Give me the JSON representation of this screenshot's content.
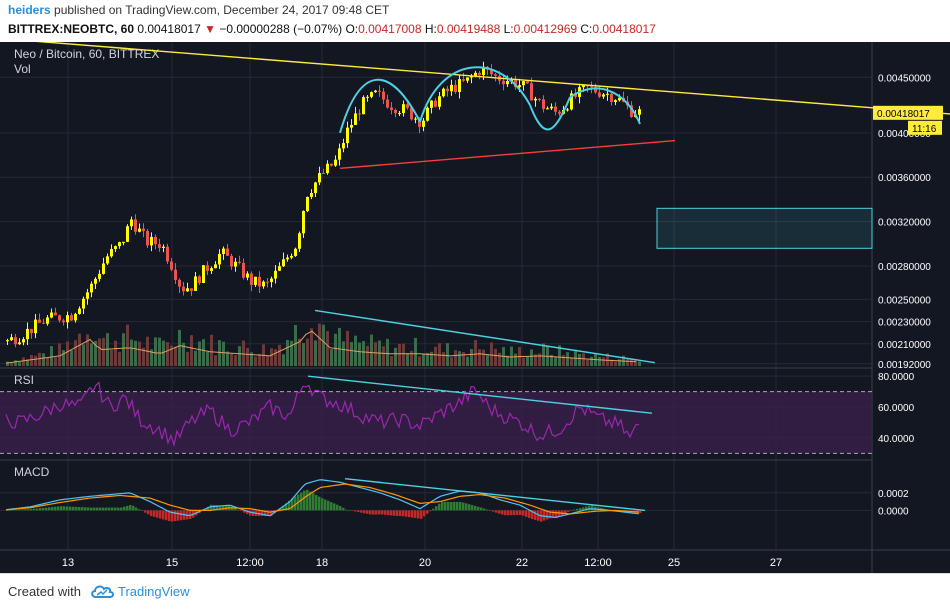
{
  "header": {
    "author": "heiders",
    "published_text": "published on TradingView.com, December 24, 2017 09:48 CET",
    "symbol": "BITTREX:NEOBTC, 60",
    "last": "0.00418017",
    "change_arrow": "▼",
    "change": "−0.00000288 (−0.07%)",
    "ohlc": [
      {
        "k": "O:",
        "v": "0.00417008"
      },
      {
        "k": "H:",
        "v": "0.00419488"
      },
      {
        "k": "L:",
        "v": "0.00412969"
      },
      {
        "k": "C:",
        "v": "0.00418017"
      }
    ]
  },
  "footer": {
    "created_with": "Created with",
    "brand": "TradingView",
    "logo_icon": "tradingview-cloud-icon"
  },
  "chart_data": {
    "type": "candlestick",
    "panes": [
      {
        "name": "price",
        "legend": [
          "Neo / Bitcoin, 60, BITTREX",
          "Vol"
        ],
        "ylim": [
          0.0019,
          0.0048
        ],
        "y_ticks": [
          "0.00450000",
          "0.00400000",
          "0.00360000",
          "0.00320000",
          "0.00280000",
          "0.00250000",
          "0.00230000",
          "0.00210000",
          "0.00192000"
        ],
        "last_price_label": "0.00418017",
        "countdown_label": "11:16",
        "close_path": [
          [
            0,
            0.0021
          ],
          [
            20,
            0.00218
          ],
          [
            45,
            0.00232
          ],
          [
            70,
            0.00236
          ],
          [
            90,
            0.00262
          ],
          [
            105,
            0.00288
          ],
          [
            120,
            0.003
          ],
          [
            130,
            0.00322
          ],
          [
            145,
            0.00302
          ],
          [
            160,
            0.003
          ],
          [
            172,
            0.00278
          ],
          [
            180,
            0.0026
          ],
          [
            190,
            0.00262
          ],
          [
            205,
            0.00278
          ],
          [
            220,
            0.00292
          ],
          [
            235,
            0.0028
          ],
          [
            250,
            0.00266
          ],
          [
            265,
            0.00262
          ],
          [
            280,
            0.0028
          ],
          [
            295,
            0.003
          ],
          [
            305,
            0.00345
          ],
          [
            320,
            0.00362
          ],
          [
            335,
            0.00375
          ],
          [
            345,
            0.004
          ],
          [
            360,
            0.00425
          ],
          [
            375,
            0.00435
          ],
          [
            390,
            0.00425
          ],
          [
            405,
            0.0042
          ],
          [
            420,
            0.0041
          ],
          [
            435,
            0.0043
          ],
          [
            450,
            0.0044
          ],
          [
            465,
            0.00446
          ],
          [
            480,
            0.00458
          ],
          [
            495,
            0.0045
          ],
          [
            510,
            0.00447
          ],
          [
            525,
            0.0044
          ],
          [
            540,
            0.00425
          ],
          [
            555,
            0.00418
          ],
          [
            570,
            0.0043
          ],
          [
            585,
            0.0044
          ],
          [
            600,
            0.00437
          ],
          [
            615,
            0.00432
          ],
          [
            630,
            0.0042
          ],
          [
            640,
            0.00418
          ]
        ],
        "volume_path": [
          [
            0,
            0.05
          ],
          [
            30,
            0.15
          ],
          [
            60,
            0.25
          ],
          [
            90,
            0.65
          ],
          [
            100,
            0.4
          ],
          [
            130,
            0.45
          ],
          [
            160,
            0.3
          ],
          [
            180,
            0.5
          ],
          [
            210,
            0.35
          ],
          [
            240,
            0.3
          ],
          [
            270,
            0.25
          ],
          [
            300,
            0.6
          ],
          [
            310,
            0.9
          ],
          [
            330,
            0.45
          ],
          [
            360,
            0.35
          ],
          [
            390,
            0.3
          ],
          [
            420,
            0.3
          ],
          [
            450,
            0.25
          ],
          [
            480,
            0.3
          ],
          [
            510,
            0.22
          ],
          [
            540,
            0.25
          ],
          [
            570,
            0.2
          ],
          [
            600,
            0.15
          ],
          [
            640,
            0.1
          ]
        ],
        "drawings": [
          {
            "kind": "trend",
            "color": "#ffeb3b",
            "from": [
              0,
              0.00485
            ],
            "to": [
              950,
              0.00417
            ]
          },
          {
            "kind": "trend",
            "color": "#ff3b3b",
            "from": [
              340,
              0.00368
            ],
            "to": [
              675,
              0.00393
            ]
          },
          {
            "kind": "trend",
            "color": "#4dd0e1",
            "from": [
              315,
              0.0024
            ],
            "to": [
              655,
              0.00193
            ]
          },
          {
            "kind": "arc",
            "color": "#4dd0e1",
            "points": [
              [
                340,
                0.004
              ],
              [
                360,
                0.00462
              ],
              [
                390,
                0.00462
              ],
              [
                420,
                0.0041
              ]
            ]
          },
          {
            "kind": "arc",
            "color": "#4dd0e1",
            "points": [
              [
                420,
                0.0041
              ],
              [
                440,
                0.0047
              ],
              [
                500,
                0.00475
              ],
              [
                530,
                0.00425
              ]
            ]
          },
          {
            "kind": "arc",
            "color": "#4dd0e1",
            "points": [
              [
                530,
                0.00425
              ],
              [
                545,
                0.0039
              ],
              [
                555,
                0.004
              ],
              [
                570,
                0.00432
              ]
            ]
          },
          {
            "kind": "arc",
            "color": "#4dd0e1",
            "points": [
              [
                570,
                0.00432
              ],
              [
                595,
                0.00448
              ],
              [
                625,
                0.0044
              ],
              [
                640,
                0.00408
              ]
            ]
          },
          {
            "kind": "rect",
            "color": "#4dd0e1",
            "from": [
              657,
              0.00332
            ],
            "to": [
              872,
              0.00296
            ]
          }
        ]
      },
      {
        "name": "RSI",
        "legend": [
          "RSI"
        ],
        "ylim": [
          27,
          84
        ],
        "y_ticks": [
          "80.0000",
          "60.0000",
          "40.0000"
        ],
        "band": [
          30,
          70
        ],
        "line_path": [
          [
            0,
            52
          ],
          [
            20,
            50
          ],
          [
            40,
            55
          ],
          [
            60,
            62
          ],
          [
            80,
            60
          ],
          [
            95,
            75
          ],
          [
            110,
            60
          ],
          [
            125,
            66
          ],
          [
            140,
            52
          ],
          [
            160,
            45
          ],
          [
            175,
            38
          ],
          [
            190,
            50
          ],
          [
            210,
            58
          ],
          [
            230,
            45
          ],
          [
            250,
            50
          ],
          [
            270,
            60
          ],
          [
            290,
            54
          ],
          [
            305,
            78
          ],
          [
            320,
            66
          ],
          [
            340,
            62
          ],
          [
            360,
            55
          ],
          [
            380,
            50
          ],
          [
            400,
            52
          ],
          [
            420,
            48
          ],
          [
            440,
            56
          ],
          [
            460,
            63
          ],
          [
            475,
            71
          ],
          [
            490,
            59
          ],
          [
            505,
            54
          ],
          [
            520,
            50
          ],
          [
            540,
            42
          ],
          [
            560,
            46
          ],
          [
            580,
            60
          ],
          [
            600,
            52
          ],
          [
            620,
            48
          ],
          [
            630,
            40
          ],
          [
            640,
            50
          ]
        ],
        "drawings": [
          {
            "kind": "trend",
            "color": "#4dd0e1",
            "from": [
              308,
              80
            ],
            "to": [
              652,
              56
            ]
          }
        ]
      },
      {
        "name": "MACD",
        "legend": [
          "MACD"
        ],
        "ylim": [
          -0.00045,
          0.00055
        ],
        "y_ticks": [
          "0.0002",
          "0.0000"
        ],
        "macd_path": [
          [
            0,
            0.0
          ],
          [
            30,
            4e-05
          ],
          [
            60,
            0.00012
          ],
          [
            90,
            0.00016
          ],
          [
            110,
            0.00018
          ],
          [
            130,
            0.0002
          ],
          [
            150,
            0.0001
          ],
          [
            170,
            -2e-05
          ],
          [
            190,
            -6e-05
          ],
          [
            210,
            4e-05
          ],
          [
            230,
            6e-05
          ],
          [
            250,
            -2e-05
          ],
          [
            270,
            -6e-05
          ],
          [
            290,
            0.0001
          ],
          [
            305,
            0.0003
          ],
          [
            320,
            0.00035
          ],
          [
            340,
            0.00032
          ],
          [
            360,
            0.00026
          ],
          [
            380,
            0.0002
          ],
          [
            400,
            0.00012
          ],
          [
            420,
            2e-05
          ],
          [
            440,
            0.00016
          ],
          [
            460,
            0.00022
          ],
          [
            480,
            0.0002
          ],
          [
            500,
            0.00012
          ],
          [
            520,
            6e-05
          ],
          [
            540,
            -6e-05
          ],
          [
            555,
            -8e-05
          ],
          [
            570,
            -4e-05
          ],
          [
            590,
            2e-05
          ],
          [
            610,
            0.0
          ],
          [
            625,
            -2e-05
          ],
          [
            640,
            -4e-05
          ]
        ],
        "signal_path": [
          [
            0,
            0.0
          ],
          [
            30,
            3e-05
          ],
          [
            60,
            9e-05
          ],
          [
            90,
            0.00014
          ],
          [
            120,
            0.00017
          ],
          [
            150,
            0.00014
          ],
          [
            170,
            6e-05
          ],
          [
            190,
            0.0
          ],
          [
            210,
            0.0
          ],
          [
            230,
            3e-05
          ],
          [
            250,
            2e-05
          ],
          [
            270,
            -2e-05
          ],
          [
            290,
            2e-05
          ],
          [
            305,
            0.00015
          ],
          [
            320,
            0.00026
          ],
          [
            345,
            0.0003
          ],
          [
            370,
            0.00026
          ],
          [
            395,
            0.00018
          ],
          [
            420,
            8e-05
          ],
          [
            440,
            0.0001
          ],
          [
            460,
            0.00016
          ],
          [
            480,
            0.00018
          ],
          [
            505,
            0.00014
          ],
          [
            530,
            6e-05
          ],
          [
            550,
            -2e-05
          ],
          [
            570,
            -4e-05
          ],
          [
            595,
            -1e-05
          ],
          [
            615,
            0.0
          ],
          [
            640,
            -2e-05
          ]
        ],
        "drawings": [
          {
            "kind": "trend",
            "color": "#4dd0e1",
            "from": [
              345,
              0.00036
            ],
            "to": [
              645,
              0.0
            ]
          }
        ]
      }
    ],
    "x_ticks": [
      {
        "x": 68,
        "label": "13"
      },
      {
        "x": 172,
        "label": "15"
      },
      {
        "x": 250,
        "label": "12:00"
      },
      {
        "x": 322,
        "label": "18"
      },
      {
        "x": 425,
        "label": "20"
      },
      {
        "x": 522,
        "label": "22"
      },
      {
        "x": 598,
        "label": "12:00"
      },
      {
        "x": 674,
        "label": "25"
      },
      {
        "x": 776,
        "label": "27"
      }
    ],
    "colors": {
      "background": "#131722",
      "grid": "#252a36",
      "up": "#ffff00",
      "down": "#ef5350",
      "vol_up": "#3a6b4a",
      "vol_down": "#6b3a3a",
      "ma": "#e0a060",
      "rsi": "#9c27b0",
      "rsi_band": "#3a1f4a",
      "macd": "#4fc3f7",
      "signal": "#ff9800",
      "hist_up": "#2e7d32",
      "hist_down": "#c62828",
      "text": "#d1d4dc",
      "axis_text": "#ffffff"
    }
  }
}
